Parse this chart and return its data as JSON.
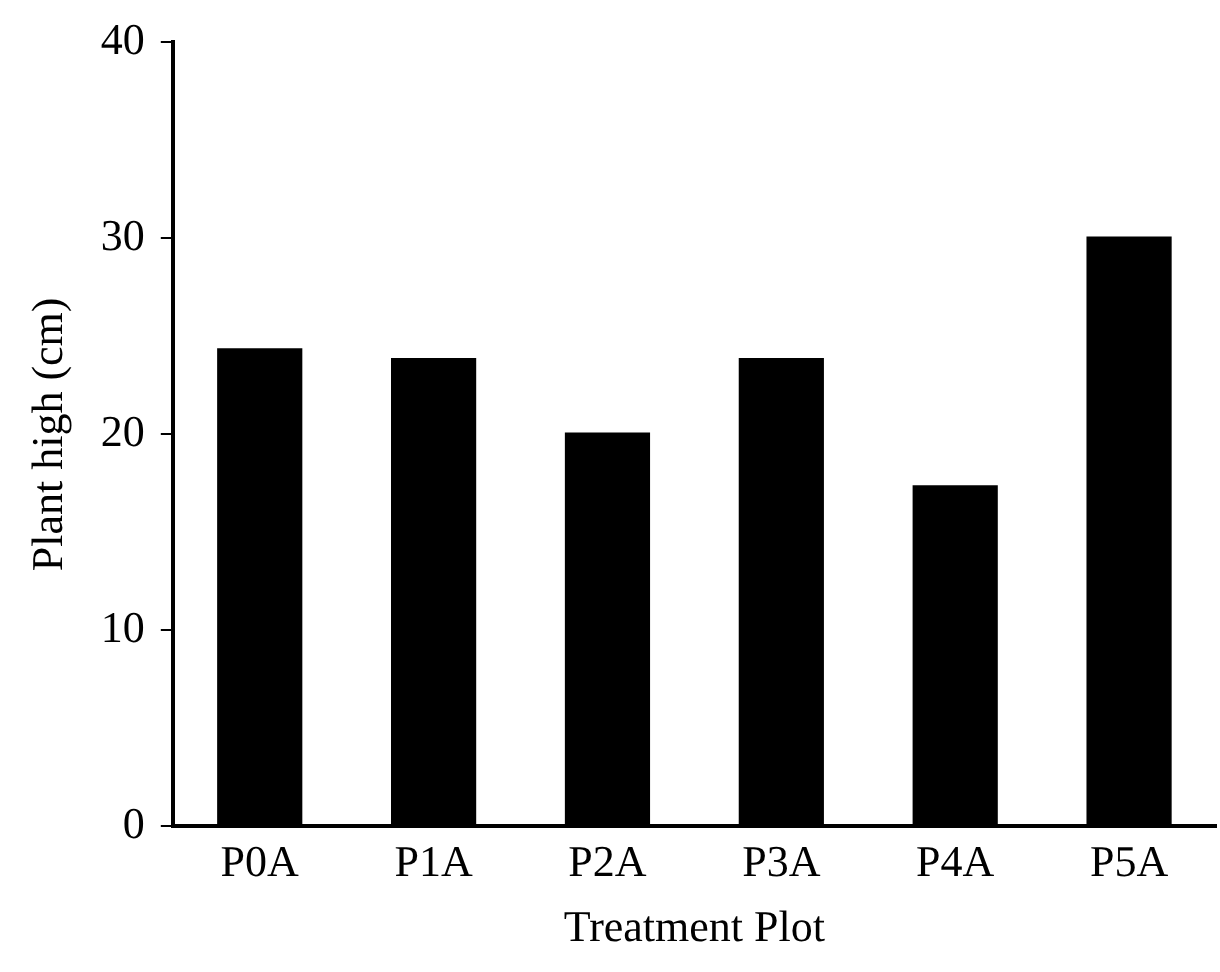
{
  "chart_data": {
    "type": "bar",
    "xlabel": "Treatment Plot",
    "ylabel": "Plant high (cm)",
    "categories": [
      "P0A",
      "P1A",
      "P2A",
      "P3A",
      "P4A",
      "P5A"
    ],
    "values": [
      24.4,
      23.9,
      20.1,
      23.9,
      17.4,
      30.1
    ],
    "color": "#000000",
    "ylim": [
      0,
      40
    ],
    "yticks": [
      0,
      10,
      20,
      30,
      40
    ],
    "grid": false,
    "legend": false
  }
}
